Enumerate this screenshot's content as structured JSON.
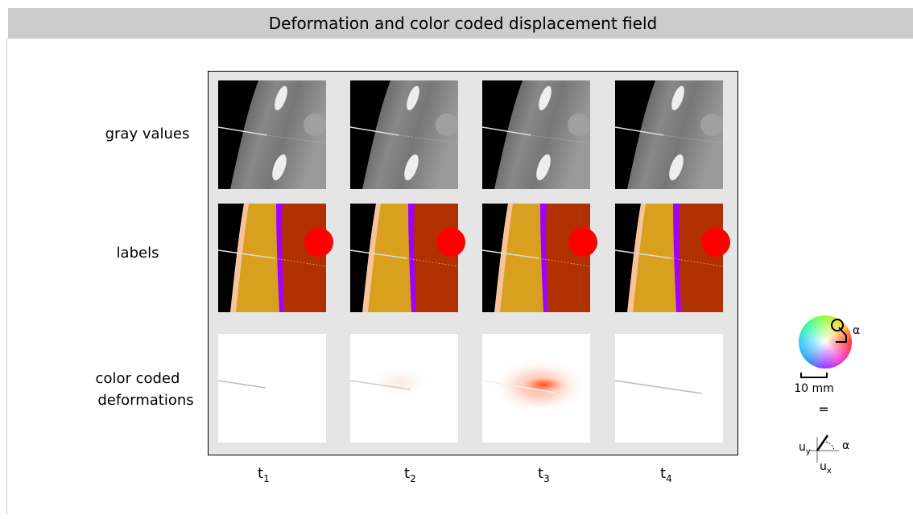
{
  "title": "Deformation and color coded displacement field",
  "rows": [
    "gray values",
    "labels",
    [
      "color coded",
      "deformations"
    ]
  ],
  "columns": [
    {
      "base": "t",
      "sub": "1"
    },
    {
      "base": "t",
      "sub": "2"
    },
    {
      "base": "t",
      "sub": "3"
    },
    {
      "base": "t",
      "sub": "4"
    }
  ],
  "legend": {
    "angle": "α",
    "scale": "10 mm",
    "equals": "=",
    "uy": {
      "base": "u",
      "sub": "y"
    },
    "ux": {
      "base": "u",
      "sub": "x"
    },
    "angle2": "α"
  }
}
